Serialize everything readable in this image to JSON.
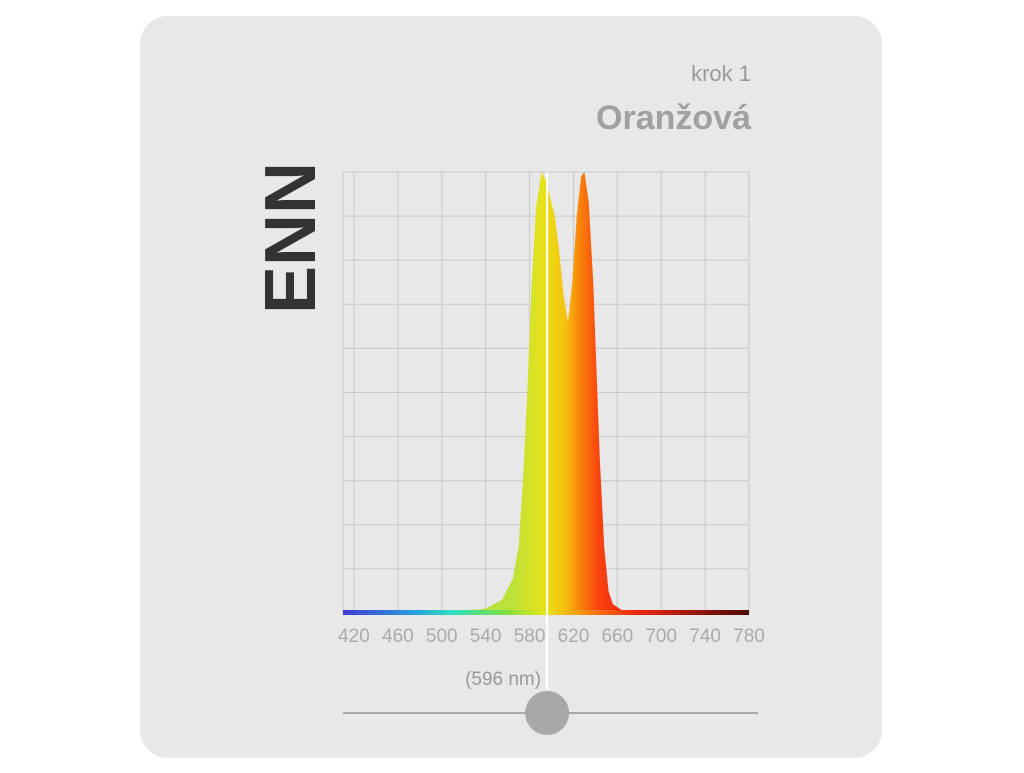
{
  "chart_data": {
    "type": "area",
    "subtitle": "krok 1",
    "title": "Oranžová",
    "brand": "ENN",
    "x": [
      410,
      450,
      500,
      540,
      555,
      565,
      570,
      574,
      578,
      582,
      586,
      591,
      595,
      600,
      603,
      607,
      611,
      615,
      619,
      623,
      627,
      630,
      634,
      638,
      641,
      644,
      648,
      652,
      656,
      665,
      700,
      780
    ],
    "values": [
      0,
      0,
      0,
      1,
      3,
      8,
      15,
      30,
      50,
      75,
      92,
      100,
      98,
      93,
      90,
      82,
      72,
      66,
      75,
      90,
      99,
      100,
      93,
      75,
      55,
      35,
      15,
      5,
      2,
      0.5,
      0,
      0
    ],
    "xlim": [
      410,
      780
    ],
    "xticks": [
      420,
      460,
      500,
      540,
      580,
      620,
      660,
      700,
      740,
      780
    ],
    "ylim": [
      0,
      100
    ],
    "yticks": [
      0,
      10,
      20,
      30,
      40,
      50,
      60,
      70,
      80,
      90,
      100
    ],
    "grid": true,
    "marker": {
      "value": 596,
      "label": "(596 nm)"
    }
  }
}
